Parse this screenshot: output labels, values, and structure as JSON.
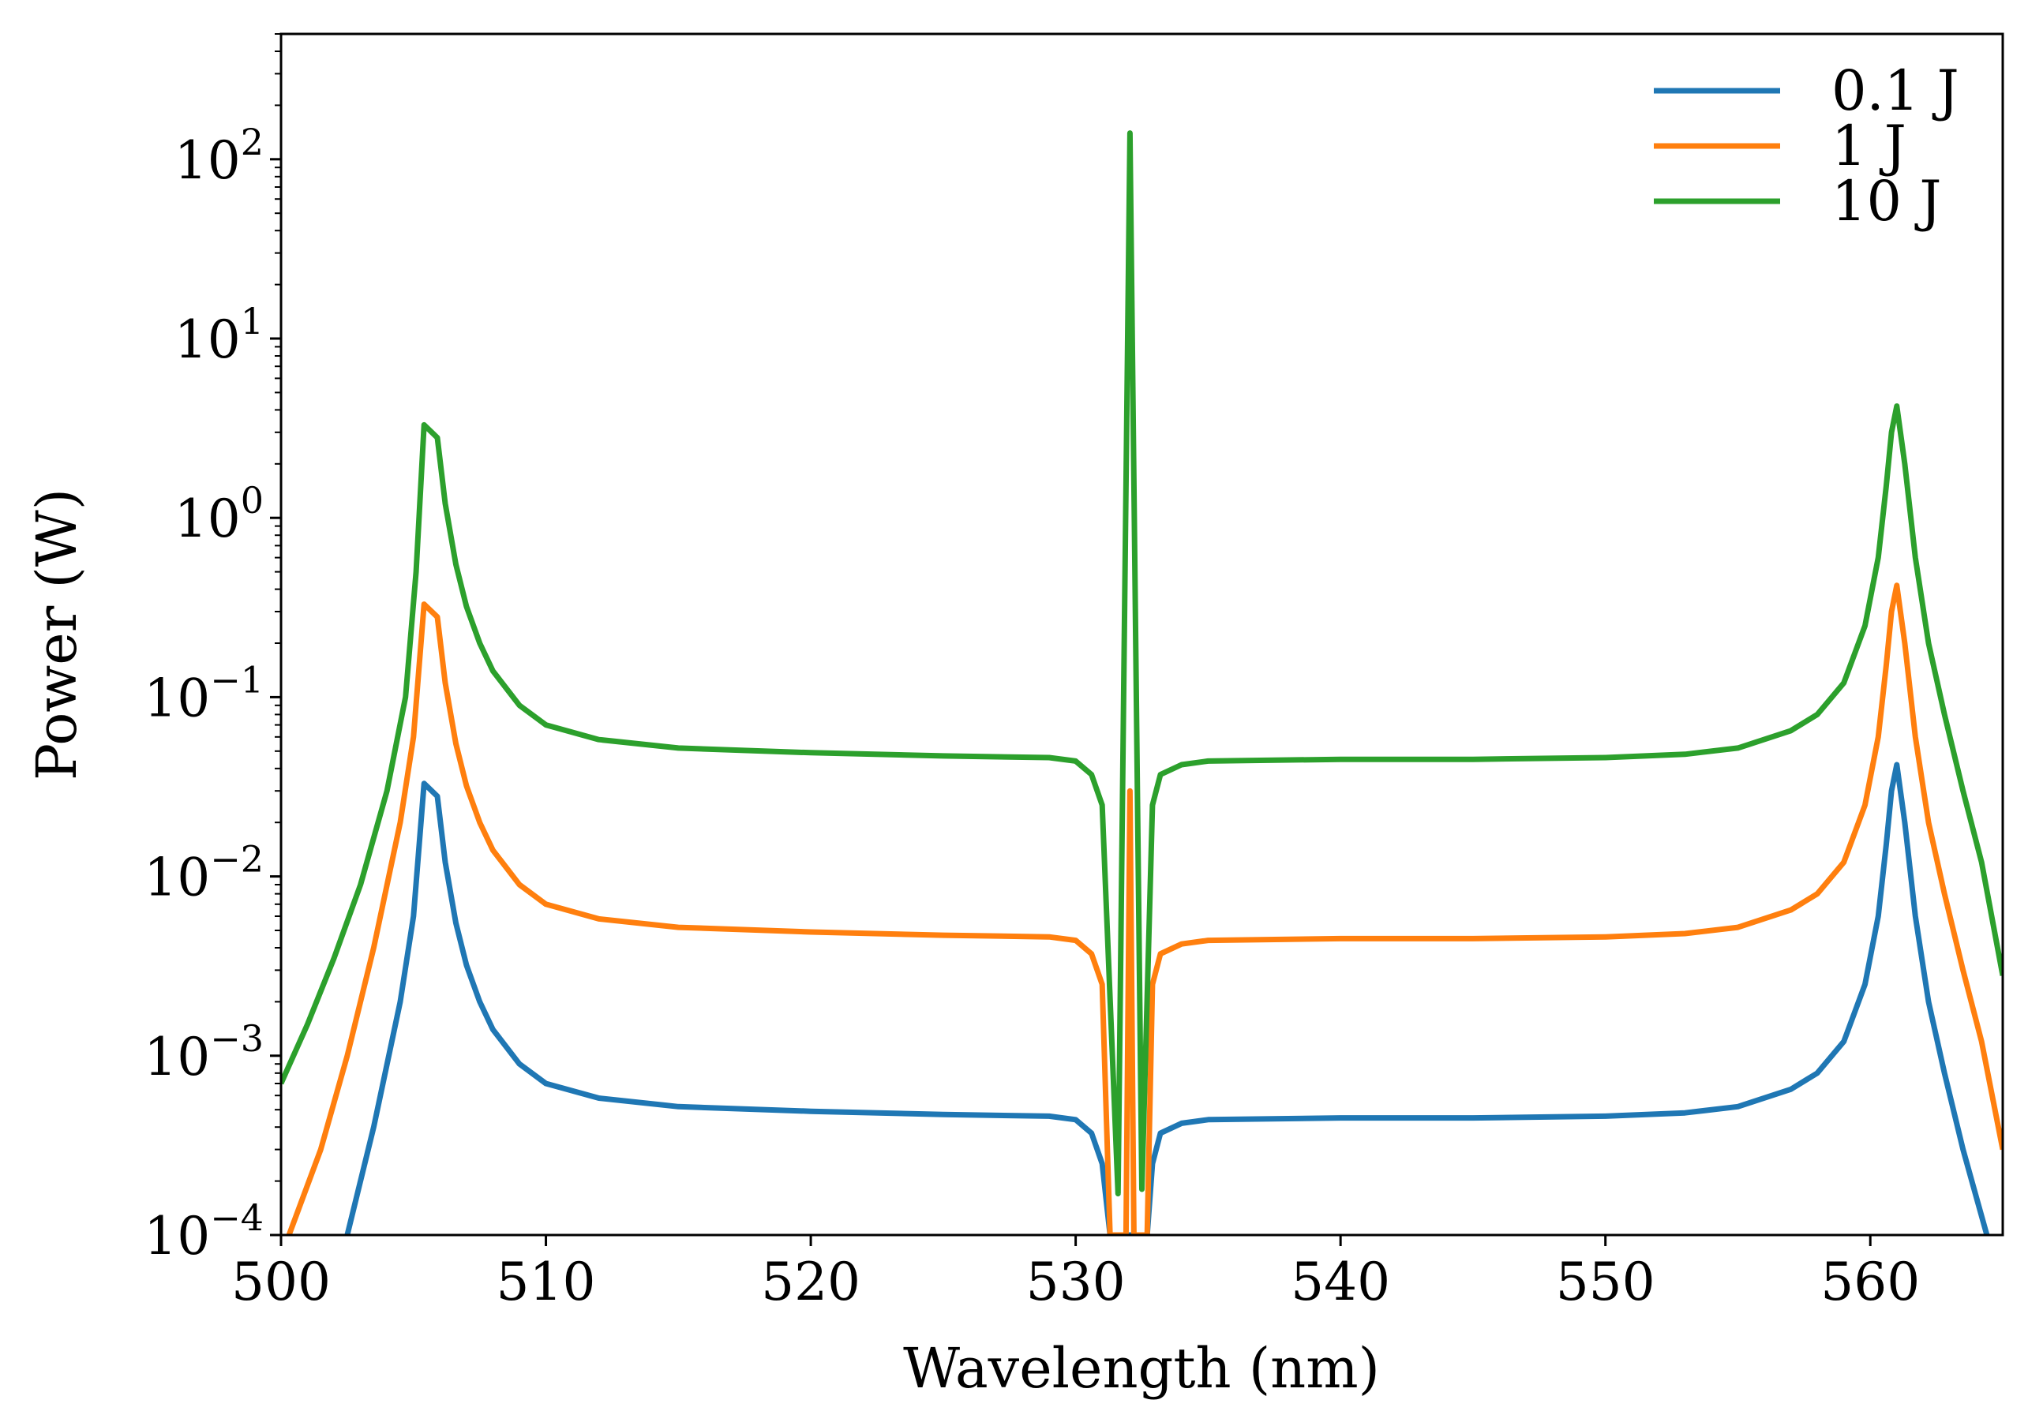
{
  "chart_data": {
    "type": "line",
    "title": "",
    "xlabel": "Wavelength (nm)",
    "ylabel": "Power (W)",
    "xlim": [
      500,
      565
    ],
    "ylim": [
      0.0001,
      500
    ],
    "yscale": "log",
    "grid": false,
    "legend_position": "top-right",
    "x_ticks": [
      500,
      510,
      520,
      530,
      540,
      550,
      560
    ],
    "y_ticks": [
      {
        "value": 0.0001,
        "base": "10",
        "exp": "−4"
      },
      {
        "value": 0.001,
        "base": "10",
        "exp": "−3"
      },
      {
        "value": 0.01,
        "base": "10",
        "exp": "−2"
      },
      {
        "value": 0.1,
        "base": "10",
        "exp": "−1"
      },
      {
        "value": 1,
        "base": "10",
        "exp": "0"
      },
      {
        "value": 10,
        "base": "10",
        "exp": "1"
      },
      {
        "value": 100,
        "base": "10",
        "exp": "2"
      }
    ],
    "series": [
      {
        "name": "0.1 J",
        "color": "#1f77b4",
        "points": [
          [
            502.5,
            0.0001
          ],
          [
            503.5,
            0.0004
          ],
          [
            504.5,
            0.002
          ],
          [
            505.0,
            0.006
          ],
          [
            505.4,
            0.033
          ],
          [
            505.9,
            0.028
          ],
          [
            506.2,
            0.012
          ],
          [
            506.6,
            0.0055
          ],
          [
            507.0,
            0.0032
          ],
          [
            507.5,
            0.002
          ],
          [
            508,
            0.0014
          ],
          [
            509,
            0.0009
          ],
          [
            510,
            0.0007
          ],
          [
            512,
            0.00058
          ],
          [
            515,
            0.00052
          ],
          [
            520,
            0.00049
          ],
          [
            525,
            0.00047
          ],
          [
            529,
            0.00046
          ],
          [
            530,
            0.00044
          ],
          [
            530.6,
            0.00037
          ],
          [
            531.0,
            0.00025
          ],
          [
            531.3,
            0.0001
          ],
          [
            532.7,
            0.0001
          ],
          [
            532.9,
            0.00025
          ],
          [
            533.2,
            0.00037
          ],
          [
            534,
            0.00042
          ],
          [
            535,
            0.00044
          ],
          [
            540,
            0.00045
          ],
          [
            545,
            0.00045
          ],
          [
            550,
            0.00046
          ],
          [
            553,
            0.00048
          ],
          [
            555,
            0.00052
          ],
          [
            557,
            0.00065
          ],
          [
            558,
            0.0008
          ],
          [
            559,
            0.0012
          ],
          [
            559.8,
            0.0025
          ],
          [
            560.3,
            0.006
          ],
          [
            560.6,
            0.015
          ],
          [
            560.8,
            0.03
          ],
          [
            561.0,
            0.042
          ],
          [
            561.3,
            0.02
          ],
          [
            561.7,
            0.006
          ],
          [
            562.2,
            0.002
          ],
          [
            562.8,
            0.0008
          ],
          [
            563.5,
            0.0003
          ],
          [
            564.4,
            0.0001
          ]
        ]
      },
      {
        "name": "1 J",
        "color": "#ff7f0e",
        "points": [
          [
            500.3,
            0.0001
          ],
          [
            501.5,
            0.0003
          ],
          [
            502.5,
            0.001
          ],
          [
            503.5,
            0.004
          ],
          [
            504.5,
            0.02
          ],
          [
            505.0,
            0.06
          ],
          [
            505.4,
            0.33
          ],
          [
            505.9,
            0.28
          ],
          [
            506.2,
            0.12
          ],
          [
            506.6,
            0.055
          ],
          [
            507.0,
            0.032
          ],
          [
            507.5,
            0.02
          ],
          [
            508,
            0.014
          ],
          [
            509,
            0.009
          ],
          [
            510,
            0.007
          ],
          [
            512,
            0.0058
          ],
          [
            515,
            0.0052
          ],
          [
            520,
            0.0049
          ],
          [
            525,
            0.0047
          ],
          [
            529,
            0.0046
          ],
          [
            530,
            0.0044
          ],
          [
            530.6,
            0.0037
          ],
          [
            531.0,
            0.0025
          ],
          [
            531.3,
            0.0001
          ],
          [
            531.9,
            0.0001
          ],
          [
            532.05,
            0.03
          ],
          [
            532.2,
            0.0001
          ],
          [
            532.7,
            0.0001
          ],
          [
            532.9,
            0.0025
          ],
          [
            533.2,
            0.0037
          ],
          [
            534,
            0.0042
          ],
          [
            535,
            0.0044
          ],
          [
            540,
            0.0045
          ],
          [
            545,
            0.0045
          ],
          [
            550,
            0.0046
          ],
          [
            553,
            0.0048
          ],
          [
            555,
            0.0052
          ],
          [
            557,
            0.0065
          ],
          [
            558,
            0.008
          ],
          [
            559,
            0.012
          ],
          [
            559.8,
            0.025
          ],
          [
            560.3,
            0.06
          ],
          [
            560.6,
            0.15
          ],
          [
            560.8,
            0.3
          ],
          [
            561.0,
            0.42
          ],
          [
            561.3,
            0.2
          ],
          [
            561.7,
            0.06
          ],
          [
            562.2,
            0.02
          ],
          [
            562.8,
            0.008
          ],
          [
            563.5,
            0.003
          ],
          [
            564.2,
            0.0012
          ],
          [
            565,
            0.0003
          ]
        ]
      },
      {
        "name": "10 J",
        "color": "#2ca02c",
        "points": [
          [
            500,
            0.0007
          ],
          [
            501,
            0.0015
          ],
          [
            502,
            0.0035
          ],
          [
            503,
            0.009
          ],
          [
            504,
            0.03
          ],
          [
            504.7,
            0.1
          ],
          [
            505.1,
            0.5
          ],
          [
            505.4,
            3.3
          ],
          [
            505.9,
            2.8
          ],
          [
            506.2,
            1.2
          ],
          [
            506.6,
            0.55
          ],
          [
            507.0,
            0.32
          ],
          [
            507.5,
            0.2
          ],
          [
            508,
            0.14
          ],
          [
            509,
            0.09
          ],
          [
            510,
            0.07
          ],
          [
            512,
            0.058
          ],
          [
            515,
            0.052
          ],
          [
            520,
            0.049
          ],
          [
            525,
            0.047
          ],
          [
            529,
            0.046
          ],
          [
            530,
            0.044
          ],
          [
            530.6,
            0.037
          ],
          [
            531.0,
            0.025
          ],
          [
            531.6,
            0.00017
          ],
          [
            532.05,
            140
          ],
          [
            532.5,
            0.00018
          ],
          [
            532.9,
            0.025
          ],
          [
            533.2,
            0.037
          ],
          [
            534,
            0.042
          ],
          [
            535,
            0.044
          ],
          [
            540,
            0.045
          ],
          [
            545,
            0.045
          ],
          [
            550,
            0.046
          ],
          [
            553,
            0.048
          ],
          [
            555,
            0.052
          ],
          [
            557,
            0.065
          ],
          [
            558,
            0.08
          ],
          [
            559,
            0.12
          ],
          [
            559.8,
            0.25
          ],
          [
            560.3,
            0.6
          ],
          [
            560.6,
            1.5
          ],
          [
            560.8,
            3.0
          ],
          [
            561.0,
            4.2
          ],
          [
            561.3,
            2.0
          ],
          [
            561.7,
            0.6
          ],
          [
            562.2,
            0.2
          ],
          [
            562.8,
            0.08
          ],
          [
            563.5,
            0.03
          ],
          [
            564.2,
            0.012
          ],
          [
            565,
            0.0028
          ]
        ]
      }
    ]
  }
}
